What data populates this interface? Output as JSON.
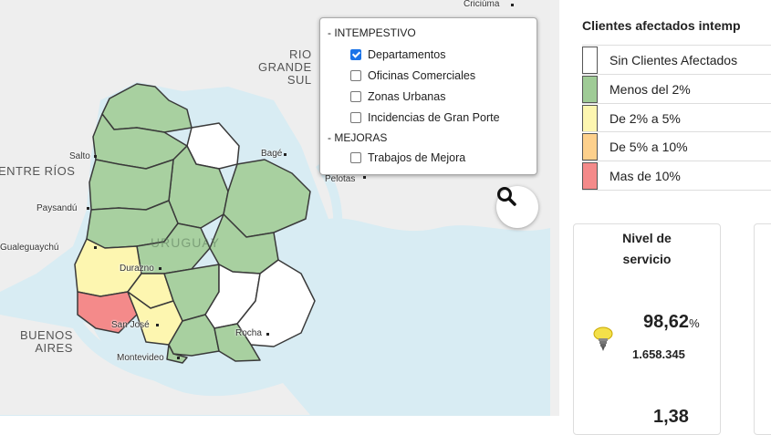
{
  "map": {
    "labels": {
      "rio_grande": "RIO\nGRANDE\nSUL",
      "entre_rios": "ENTRE RÍOS",
      "buenos_aires": "BUENOS\nAIRES",
      "uruguay": "URUGUAY",
      "cities": [
        "Criciúma",
        "Salto",
        "Bagé",
        "Pelotas",
        "Paysandú",
        "Gualeguaychú",
        "Durazno",
        "San José",
        "Rocha",
        "Montevideo"
      ]
    },
    "department_colors": {
      "green": "#a8d0a0",
      "white": "#ffffff",
      "yellow": "#fdf6b0",
      "red": "#f48a8a"
    }
  },
  "layer_control": {
    "group1": "- INTEMPESTIVO",
    "options1": [
      {
        "label": "Departamentos",
        "checked": true
      },
      {
        "label": "Oficinas Comerciales",
        "checked": false
      },
      {
        "label": "Zonas Urbanas",
        "checked": false
      },
      {
        "label": "Incidencias de Gran Porte",
        "checked": false
      }
    ],
    "group2": "- MEJORAS",
    "options2": [
      {
        "label": "Trabajos de Mejora",
        "checked": false
      }
    ]
  },
  "legend": {
    "title": "Clientes afectados intemp",
    "items": [
      {
        "label": "Sin Clientes Afectados",
        "color": "#ffffff"
      },
      {
        "label": "Menos del 2%",
        "color": "#9fcb96"
      },
      {
        "label": "De 2% a 5%",
        "color": "#fdf6b0"
      },
      {
        "label": "De 5% a 10%",
        "color": "#fdd08c"
      },
      {
        "label": "Mas de 10%",
        "color": "#f48a8a"
      }
    ]
  },
  "service_card": {
    "title": "Nivel de servicio",
    "value": "98,62",
    "unit": "%",
    "count": "1.658.345",
    "next_value": "1,38"
  }
}
